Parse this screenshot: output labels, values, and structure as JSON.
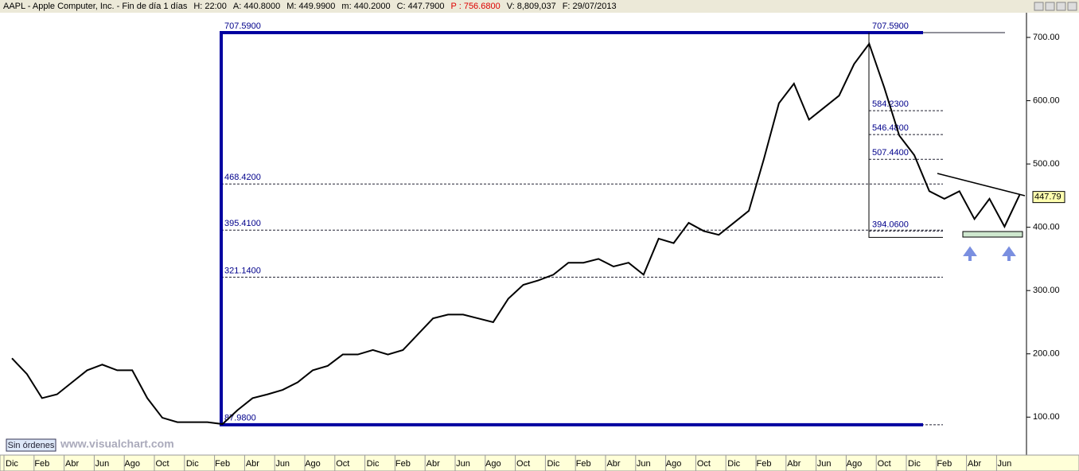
{
  "header": {
    "items": [
      "AAPL - Apple Computer, Inc. - Fin de día 1 días",
      "H: 22:00",
      "A: 440.8000",
      "M: 449.9900",
      "m: 440.2000",
      "C: 447.7900",
      "P : 756.6800",
      "V: 8,809,037",
      "F: 29/07/2013"
    ]
  },
  "footer": {
    "button": "Sin órdenes",
    "site": "www.visualchart.com"
  },
  "chart_data": {
    "type": "line",
    "color": "#000000",
    "categories": [
      "Dic",
      null,
      "Feb",
      null,
      "Abr",
      null,
      "Jun",
      null,
      "Ago",
      null,
      "Oct",
      null,
      "Dic",
      null,
      "Feb",
      null,
      "Abr",
      null,
      "Jun",
      null,
      "Ago",
      null,
      "Oct",
      null,
      "Dic",
      null,
      "Feb",
      null,
      "Abr",
      null,
      "Jun",
      null,
      "Ago",
      null,
      "Oct",
      null,
      "Dic",
      null,
      "Feb",
      null,
      "Abr",
      null,
      "Jun",
      null,
      "Ago",
      null,
      "Oct",
      null,
      "Dic",
      null,
      "Feb",
      null,
      "Abr",
      null,
      "Jun",
      null,
      "Ago",
      null,
      "Oct",
      null,
      "Dic",
      null,
      "Feb",
      null,
      "Abr",
      null,
      "Jun",
      null
    ],
    "values": [
      193,
      168,
      130,
      136,
      155,
      174,
      183,
      174,
      174,
      130,
      99,
      92,
      92,
      92,
      89,
      111,
      130,
      136,
      143,
      155,
      174,
      181,
      199,
      199,
      206,
      199,
      206,
      231,
      256,
      262,
      262,
      256,
      250,
      287,
      309,
      316,
      325,
      344,
      344,
      350,
      338,
      344,
      325,
      382,
      375,
      407,
      394,
      388,
      407,
      426,
      508,
      596,
      627,
      570,
      589,
      608,
      658,
      690,
      621,
      545,
      514,
      457,
      445,
      457,
      413,
      445,
      401,
      451
    ],
    "ylim": [
      40,
      739
    ],
    "yticks": [
      {
        "value": 100,
        "label": "100.00"
      },
      {
        "value": 200,
        "label": "200.00"
      },
      {
        "value": 300,
        "label": "300.00"
      },
      {
        "value": 400,
        "label": "400.00"
      },
      {
        "value": 500,
        "label": "500.00"
      },
      {
        "value": 600,
        "label": "600.00"
      },
      {
        "value": 700,
        "label": "700.00"
      }
    ],
    "last_price": 447.79,
    "fib_left": [
      {
        "value": 707.59,
        "label": "707.5900"
      },
      {
        "value": 468.42,
        "label": "468.4200"
      },
      {
        "value": 395.41,
        "label": "395.4100"
      },
      {
        "value": 321.14,
        "label": "321.1400"
      },
      {
        "value": 87.98,
        "label": "87.9800"
      }
    ],
    "fib_right": [
      {
        "value": 707.59,
        "label": "707.5900"
      },
      {
        "value": 584.23,
        "label": "584.2300"
      },
      {
        "value": 546.48,
        "label": "546.4800"
      },
      {
        "value": 507.44,
        "label": "507.4400"
      },
      {
        "value": 394.06,
        "label": "394.0600"
      }
    ]
  }
}
